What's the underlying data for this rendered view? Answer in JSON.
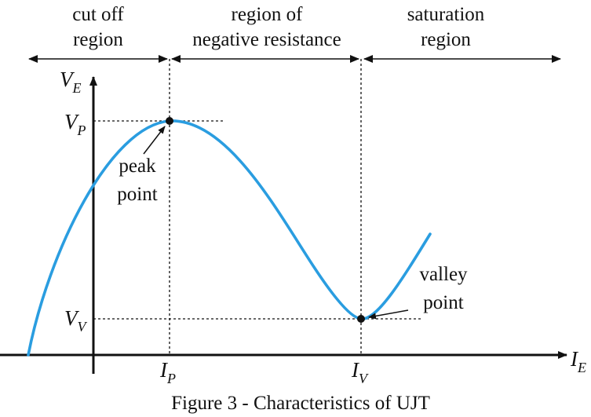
{
  "colors": {
    "curve": "#2a9de0",
    "ink": "#111111",
    "background": "#ffffff"
  },
  "regions": [
    {
      "lines": [
        "cut off",
        "region"
      ]
    },
    {
      "lines": [
        "region of",
        "negative resistance"
      ]
    },
    {
      "lines": [
        "saturation",
        "region"
      ]
    }
  ],
  "axes": {
    "y_symbol": "V",
    "y_subscript": "E",
    "x_symbol": "I",
    "x_subscript": "E"
  },
  "markers": {
    "vp_symbol": "V",
    "vp_subscript": "P",
    "vv_symbol": "V",
    "vv_subscript": "V",
    "ip_symbol": "I",
    "ip_subscript": "P",
    "iv_symbol": "I",
    "iv_subscript": "V"
  },
  "annotations": {
    "peak": [
      "peak",
      "point"
    ],
    "valley": [
      "valley",
      "point"
    ]
  },
  "caption": "Figure 3 - Characteristics of UJT"
}
